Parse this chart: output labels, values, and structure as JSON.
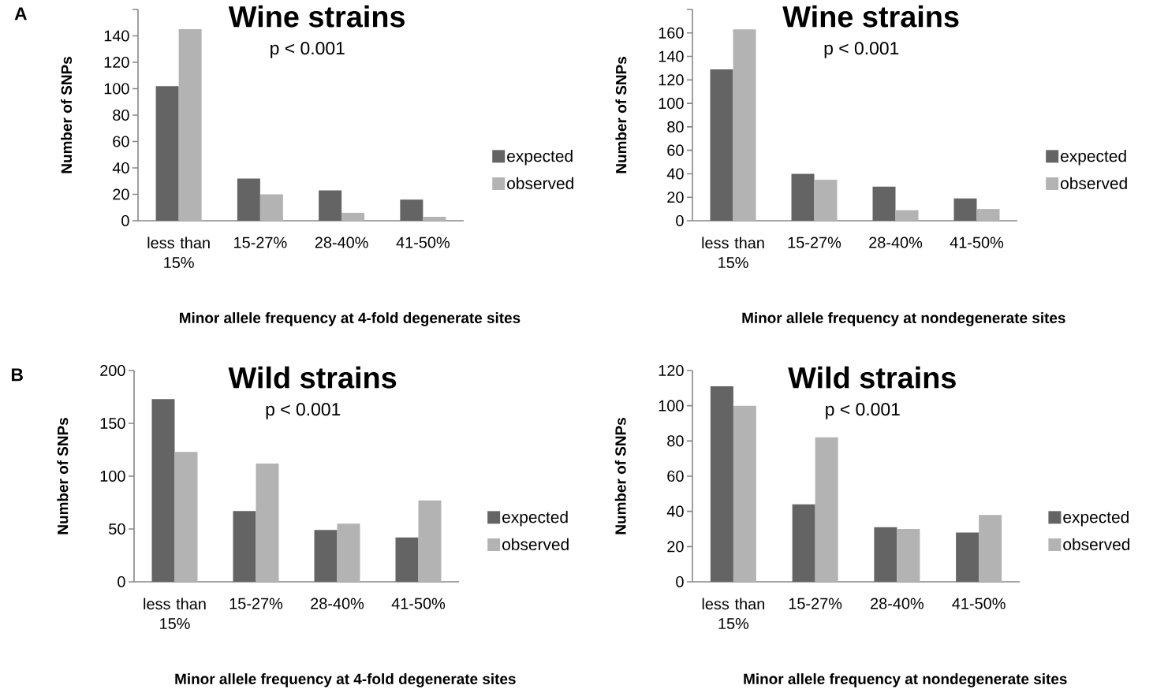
{
  "chart_data": [
    {
      "type": "bar",
      "title": "Wine strains",
      "annotations": [
        "A",
        "p < 0.001"
      ],
      "categories": [
        "less than 15%",
        "15-27%",
        "28-40%",
        "41-50%"
      ],
      "xlabel": "Minor allele frequency at 4-fold degenerate sites",
      "ylabel": "Number of SNPs",
      "ylim": [
        0,
        160
      ],
      "yticks": [
        0,
        20,
        40,
        60,
        80,
        100,
        120,
        140,
        {
          "value": 160,
          "label": null
        }
      ],
      "legend": "right",
      "series": [
        {
          "name": "expected",
          "color": "#646464",
          "values": [
            102,
            32,
            23,
            16
          ]
        },
        {
          "name": "observed",
          "color": "#b3b3b3",
          "values": [
            145,
            20,
            6,
            3
          ]
        }
      ]
    },
    {
      "type": "bar",
      "title": "Wine strains",
      "annotations": [
        "p < 0.001"
      ],
      "categories": [
        "less than 15%",
        "15-27%",
        "28-40%",
        "41-50%"
      ],
      "xlabel": "Minor allele frequency at nondegenerate sites",
      "ylabel": "Number of SNPs",
      "ylim": [
        0,
        180
      ],
      "yticks": [
        0,
        20,
        40,
        60,
        80,
        100,
        120,
        140,
        160,
        {
          "value": 180,
          "label": null
        }
      ],
      "legend": "right",
      "series": [
        {
          "name": "expected",
          "color": "#646464",
          "values": [
            129,
            40,
            29,
            19
          ]
        },
        {
          "name": "observed",
          "color": "#b3b3b3",
          "values": [
            163,
            35,
            9,
            10
          ]
        }
      ]
    },
    {
      "type": "bar",
      "title": "Wild strains",
      "annotations": [
        "B",
        "p < 0.001"
      ],
      "categories": [
        "less than 15%",
        "15-27%",
        "28-40%",
        "41-50%"
      ],
      "xlabel": "Minor allele frequency at 4-fold degenerate sites",
      "ylabel": "Number of SNPs",
      "ylim": [
        0,
        200
      ],
      "yticks": [
        0,
        50,
        100,
        150,
        200
      ],
      "legend": "right",
      "series": [
        {
          "name": "expected",
          "color": "#646464",
          "values": [
            173,
            67,
            49,
            42
          ]
        },
        {
          "name": "observed",
          "color": "#b3b3b3",
          "values": [
            123,
            112,
            55,
            77
          ]
        }
      ]
    },
    {
      "type": "bar",
      "title": "Wild strains",
      "annotations": [
        "p < 0.001"
      ],
      "categories": [
        "less than 15%",
        "15-27%",
        "28-40%",
        "41-50%"
      ],
      "xlabel": "Minor allele frequency at nondegenerate sites",
      "ylabel": "Number of SNPs",
      "ylim": [
        0,
        120
      ],
      "yticks": [
        0,
        20,
        40,
        60,
        80,
        100,
        120
      ],
      "legend": "right",
      "series": [
        {
          "name": "expected",
          "color": "#646464",
          "values": [
            111,
            44,
            31,
            28
          ]
        },
        {
          "name": "observed",
          "color": "#b3b3b3",
          "values": [
            100,
            82,
            30,
            38
          ]
        }
      ]
    }
  ]
}
